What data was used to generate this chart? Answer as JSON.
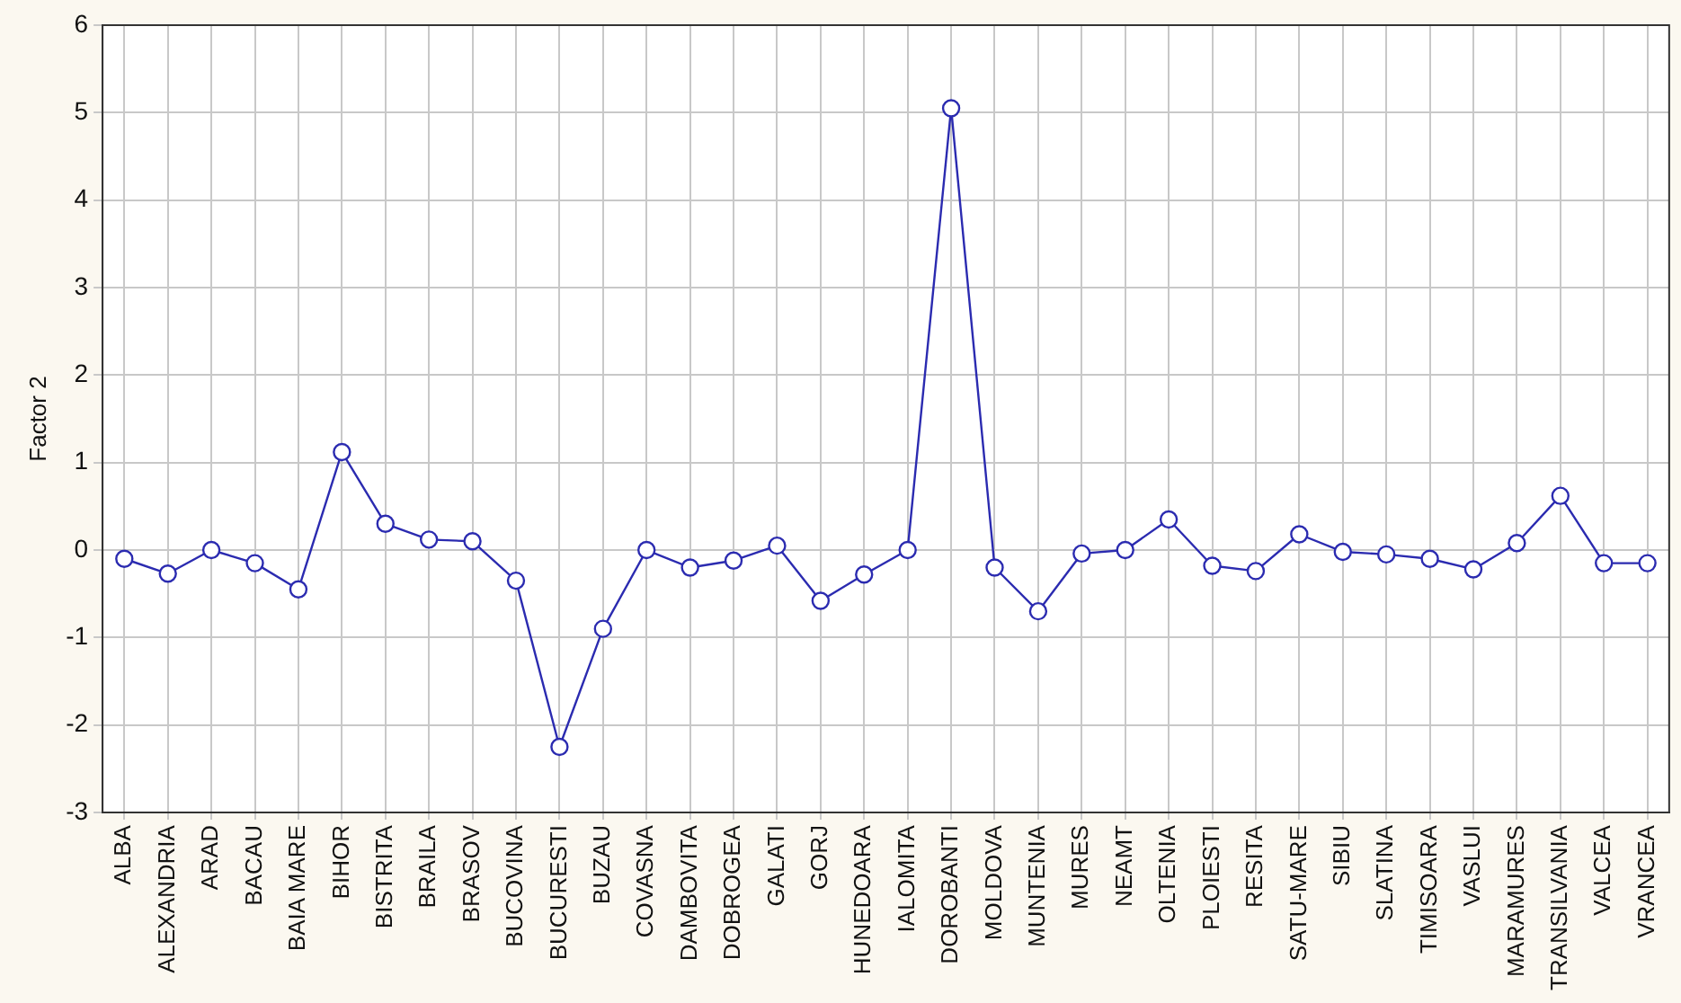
{
  "chart_data": {
    "type": "line",
    "ylabel": "Factor 2",
    "categories": [
      "ALBA",
      "ALEXANDRIA",
      "ARAD",
      "BACAU",
      "BAIA MARE",
      "BIHOR",
      "BISTRITA",
      "BRAILA",
      "BRASOV",
      "BUCOVINA",
      "BUCURESTI",
      "BUZAU",
      "COVASNA",
      "DAMBOVITA",
      "DOBROGEA",
      "GALATI",
      "GORJ",
      "HUNEDOARA",
      "IALOMITA",
      "DOROBANTI",
      "MOLDOVA",
      "MUNTENIA",
      "MURES",
      "NEAMT",
      "OLTENIA",
      "PLOIESTI",
      "RESITA",
      "SATU-MARE",
      "SIBIU",
      "SLATINA",
      "TIMISOARA",
      "VASLUI",
      "MARAMURES",
      "TRANSILVANIA",
      "VALCEA",
      "VRANCEA"
    ],
    "series": [
      {
        "color": "#2b2bb0",
        "values": [
          -0.1,
          -0.27,
          0,
          -0.15,
          -0.45,
          1.12,
          0.3,
          0.12,
          0.1,
          -0.35,
          -2.25,
          -0.9,
          0,
          -0.2,
          -0.12,
          0.05,
          -0.58,
          -0.28,
          0,
          5.05,
          -0.2,
          -0.7,
          -0.04,
          0,
          0.35,
          -0.18,
          -0.24,
          0.18,
          -0.02,
          -0.05,
          -0.1,
          -0.22,
          0.08,
          0.62,
          -0.15,
          -0.15
        ]
      }
    ],
    "ylim": [
      -3,
      6
    ],
    "yticks": [
      -3,
      -2,
      -1,
      0,
      1,
      2,
      3,
      4,
      5,
      6
    ],
    "grid": true,
    "marker": "circle",
    "line_style": "solid",
    "legend": false
  }
}
